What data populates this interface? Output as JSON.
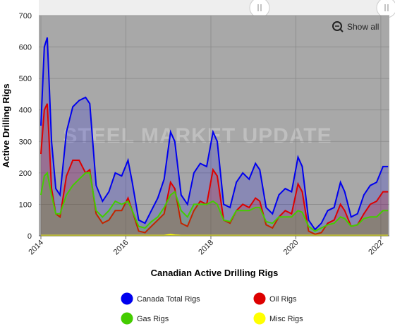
{
  "chart_data": {
    "type": "area-line",
    "watermark": "STEEL MARKET UPDATE",
    "reset_button": "Show all",
    "ylabel": "Active Drilling Rigs",
    "xlabel": "Canadian Active Drilling Rigs",
    "xlim": [
      2013.95,
      2022.2
    ],
    "xticks": [
      2014,
      2016,
      2018,
      2020,
      2022
    ],
    "ylim": [
      0,
      700
    ],
    "yticks": [
      0,
      100,
      200,
      300,
      400,
      500,
      600,
      700
    ],
    "grid": true,
    "x": [
      2014.0,
      2014.08,
      2014.15,
      2014.25,
      2014.35,
      2014.45,
      2014.6,
      2014.75,
      2014.9,
      2015.05,
      2015.15,
      2015.3,
      2015.45,
      2015.6,
      2015.75,
      2015.9,
      2016.05,
      2016.15,
      2016.3,
      2016.45,
      2016.6,
      2016.75,
      2016.9,
      2017.05,
      2017.15,
      2017.3,
      2017.45,
      2017.6,
      2017.75,
      2017.9,
      2018.05,
      2018.15,
      2018.3,
      2018.45,
      2018.6,
      2018.75,
      2018.9,
      2019.05,
      2019.15,
      2019.3,
      2019.45,
      2019.6,
      2019.75,
      2019.9,
      2020.05,
      2020.15,
      2020.3,
      2020.45,
      2020.6,
      2020.75,
      2020.9,
      2021.05,
      2021.15,
      2021.3,
      2021.45,
      2021.6,
      2021.75,
      2021.9,
      2022.05,
      2022.17
    ],
    "series": [
      {
        "name": "Canada Total Rigs",
        "color": "#0000ee",
        "values": [
          350,
          600,
          630,
          300,
          150,
          130,
          330,
          410,
          430,
          440,
          420,
          160,
          110,
          140,
          200,
          190,
          240,
          170,
          50,
          40,
          80,
          120,
          180,
          330,
          300,
          130,
          100,
          200,
          230,
          220,
          330,
          300,
          100,
          90,
          170,
          200,
          180,
          230,
          210,
          90,
          70,
          130,
          150,
          140,
          250,
          220,
          50,
          20,
          40,
          80,
          90,
          170,
          140,
          60,
          70,
          130,
          160,
          170,
          220,
          220
        ]
      },
      {
        "name": "Oil Rigs",
        "color": "#dd0000",
        "values": [
          260,
          400,
          420,
          150,
          70,
          60,
          190,
          240,
          240,
          200,
          210,
          70,
          40,
          50,
          80,
          80,
          120,
          80,
          15,
          10,
          30,
          50,
          70,
          170,
          150,
          40,
          30,
          80,
          110,
          100,
          210,
          190,
          50,
          40,
          80,
          100,
          90,
          120,
          110,
          35,
          25,
          60,
          80,
          70,
          165,
          140,
          15,
          5,
          10,
          40,
          50,
          100,
          80,
          30,
          35,
          70,
          100,
          110,
          140,
          140
        ]
      },
      {
        "name": "Gas Rigs",
        "color": "#44cc00",
        "values": [
          130,
          190,
          200,
          130,
          70,
          70,
          130,
          160,
          180,
          200,
          200,
          80,
          60,
          80,
          110,
          100,
          110,
          80,
          30,
          25,
          45,
          60,
          90,
          130,
          140,
          80,
          60,
          100,
          100,
          100,
          110,
          100,
          50,
          45,
          80,
          80,
          80,
          90,
          90,
          45,
          40,
          60,
          60,
          60,
          80,
          75,
          30,
          15,
          25,
          35,
          40,
          60,
          55,
          30,
          35,
          55,
          60,
          60,
          80,
          80
        ]
      },
      {
        "name": "Misc Rigs",
        "color": "#ffff00",
        "values": [
          1,
          1,
          1,
          1,
          1,
          1,
          1,
          1,
          1,
          1,
          1,
          1,
          1,
          1,
          1,
          1,
          1,
          1,
          1,
          1,
          1,
          1,
          1,
          4,
          2,
          1,
          1,
          1,
          1,
          1,
          1,
          1,
          1,
          1,
          1,
          1,
          1,
          1,
          1,
          1,
          1,
          1,
          1,
          1,
          1,
          1,
          1,
          1,
          1,
          1,
          1,
          1,
          1,
          1,
          1,
          1,
          1,
          1,
          1,
          1
        ]
      }
    ]
  }
}
